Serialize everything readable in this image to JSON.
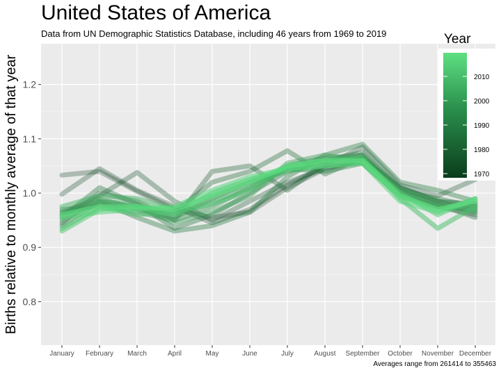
{
  "header": {
    "title": "United States of America",
    "subtitle": "Data from UN Demographic Statistics Database, including 46 years from 1969 to 2019"
  },
  "footer": {
    "caption": "Averages range from 261414 to 355463"
  },
  "legend": {
    "title": "Year",
    "labels": [
      "2010",
      "2000",
      "1990",
      "1980",
      "1970"
    ],
    "colors": {
      "low": "#0a3d1c",
      "high": "#5ee082"
    }
  },
  "chart_data": {
    "type": "line",
    "ylabel": "Births relative to monthly average of that year",
    "categories": [
      "January",
      "February",
      "March",
      "April",
      "May",
      "June",
      "July",
      "August",
      "September",
      "October",
      "November",
      "December"
    ],
    "yticks": [
      "0.8",
      "0.9",
      "1.0",
      "1.1",
      "1.2"
    ],
    "ylim": [
      0.72,
      1.275
    ],
    "grid": true,
    "legend_position": "right",
    "line_year_range": [
      1969,
      2019
    ],
    "series": [
      {
        "values": [
          1.033,
          1.04,
          1.003,
          0.97,
          0.955,
          0.965,
          1.01,
          1.045,
          1.065,
          1.01,
          0.985,
          0.965
        ]
      },
      {
        "values": [
          0.998,
          1.045,
          1.005,
          0.975,
          0.945,
          0.97,
          1.015,
          1.05,
          1.085,
          1.015,
          0.995,
          1.025
        ]
      },
      {
        "values": [
          0.96,
          0.995,
          1.038,
          0.985,
          0.95,
          0.985,
          1.02,
          1.045,
          1.06,
          1.01,
          0.985,
          0.98
        ]
      },
      {
        "values": [
          0.945,
          1.0,
          0.985,
          0.95,
          1.04,
          1.05,
          1.005,
          1.055,
          1.07,
          1.0,
          0.98,
          0.955
        ]
      },
      {
        "values": [
          0.97,
          0.975,
          0.975,
          0.965,
          1.02,
          1.04,
          1.078,
          1.035,
          1.065,
          1.0,
          0.975,
          0.96
        ]
      },
      {
        "values": [
          0.955,
          1.01,
          0.98,
          0.935,
          0.96,
          1.0,
          1.04,
          1.06,
          1.075,
          1.005,
          0.99,
          0.975
        ]
      },
      {
        "values": [
          0.94,
          0.985,
          0.955,
          0.93,
          0.94,
          0.965,
          1.03,
          1.07,
          1.09,
          1.02,
          1.005,
          0.985
        ]
      },
      {
        "values": [
          0.965,
          0.99,
          0.97,
          0.955,
          0.99,
          1.02,
          1.045,
          1.04,
          1.055,
          0.995,
          0.975,
          0.97
        ]
      },
      {
        "values": [
          0.96,
          0.98,
          0.965,
          0.95,
          0.975,
          1.01,
          1.05,
          1.065,
          1.07,
          1.01,
          0.985,
          0.975
        ]
      },
      {
        "values": [
          0.95,
          0.985,
          0.975,
          0.945,
          0.965,
          0.995,
          1.055,
          1.07,
          1.06,
          1.005,
          0.98,
          0.965
        ]
      },
      {
        "values": [
          0.965,
          0.985,
          0.98,
          0.96,
          0.985,
          1.01,
          1.045,
          1.06,
          1.065,
          1.0,
          0.975,
          0.97
        ]
      },
      {
        "values": [
          0.975,
          0.995,
          0.99,
          0.97,
          0.995,
          1.02,
          1.04,
          1.05,
          1.055,
          0.995,
          0.97,
          0.98
        ]
      },
      {
        "values": [
          0.935,
          0.975,
          0.96,
          0.965,
          0.98,
          1.005,
          1.05,
          1.06,
          1.065,
          0.99,
          0.935,
          0.975
        ]
      },
      {
        "values": [
          0.93,
          0.97,
          0.975,
          0.96,
          1.0,
          1.025,
          1.045,
          1.055,
          1.06,
          1.0,
          0.96,
          0.99
        ]
      },
      {
        "values": [
          0.955,
          0.965,
          0.97,
          0.975,
          1.005,
          1.03,
          1.045,
          1.05,
          1.055,
          0.985,
          0.965,
          0.99
        ]
      },
      {
        "values": [
          0.96,
          0.975,
          0.975,
          0.97,
          0.995,
          1.02,
          1.05,
          1.06,
          1.06,
          0.995,
          0.97,
          0.985
        ]
      }
    ]
  }
}
